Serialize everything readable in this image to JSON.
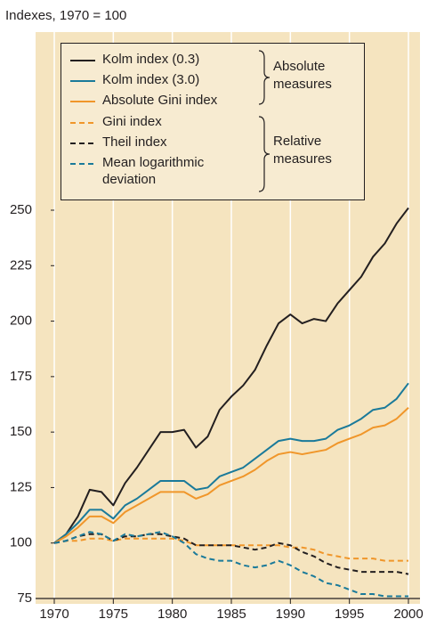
{
  "chart_data": {
    "type": "line",
    "y_axis_label": "Indexes, 1970 = 100",
    "x": [
      1970,
      1971,
      1972,
      1973,
      1974,
      1975,
      1976,
      1977,
      1978,
      1979,
      1980,
      1981,
      1982,
      1983,
      1984,
      1985,
      1986,
      1987,
      1988,
      1989,
      1990,
      1991,
      1992,
      1993,
      1994,
      1995,
      1996,
      1997,
      1998,
      1999,
      2000
    ],
    "series": [
      {
        "name": "Kolm index (0.3)",
        "color": "#231f20",
        "style": "solid",
        "values": [
          100,
          104,
          112,
          124,
          123,
          117,
          127,
          134,
          142,
          150,
          150,
          151,
          143,
          148,
          160,
          166,
          171,
          178,
          189,
          199,
          203,
          199,
          201,
          200,
          208,
          214,
          220,
          229,
          235,
          244,
          251
        ]
      },
      {
        "name": "Kolm index (3.0)",
        "color": "#1a7a9a",
        "style": "solid",
        "values": [
          100,
          104,
          109,
          115,
          115,
          111,
          117,
          120,
          124,
          128,
          128,
          128,
          124,
          125,
          130,
          132,
          134,
          138,
          142,
          146,
          147,
          146,
          146,
          147,
          151,
          153,
          156,
          160,
          161,
          165,
          172
        ]
      },
      {
        "name": "Absolute Gini index",
        "color": "#f0962a",
        "style": "solid",
        "values": [
          100,
          103,
          107,
          112,
          112,
          109,
          114,
          117,
          120,
          123,
          123,
          123,
          120,
          122,
          126,
          128,
          130,
          133,
          137,
          140,
          141,
          140,
          141,
          142,
          145,
          147,
          149,
          152,
          153,
          156,
          161
        ]
      },
      {
        "name": "Gini index",
        "color": "#f0962a",
        "style": "dashed",
        "values": [
          100,
          101,
          101,
          102,
          102,
          101,
          102,
          102,
          102,
          102,
          102,
          101,
          99,
          99,
          99,
          99,
          99,
          99,
          99,
          99,
          98,
          98,
          97,
          95,
          94,
          93,
          93,
          93,
          92,
          92,
          92
        ]
      },
      {
        "name": "Theil index",
        "color": "#231f20",
        "style": "dashed",
        "values": [
          100,
          101,
          103,
          104,
          104,
          101,
          103,
          103,
          104,
          104,
          103,
          102,
          99,
          99,
          99,
          99,
          98,
          97,
          98,
          100,
          99,
          96,
          94,
          91,
          89,
          88,
          87,
          87,
          87,
          87,
          86
        ]
      },
      {
        "name": "Mean logarithmic deviation",
        "color": "#1a7a9a",
        "style": "dashed",
        "values": [
          100,
          101,
          103,
          105,
          104,
          101,
          104,
          103,
          104,
          105,
          103,
          100,
          95,
          93,
          92,
          92,
          90,
          89,
          90,
          92,
          90,
          87,
          85,
          82,
          81,
          79,
          77,
          77,
          76,
          76,
          76
        ]
      }
    ],
    "legend_groups": [
      {
        "label": "Absolute measures",
        "series": [
          0,
          1,
          2
        ]
      },
      {
        "label": "Relative measures",
        "series": [
          3,
          4,
          5
        ]
      }
    ],
    "xlim": [
      1970,
      2000
    ],
    "xticks": [
      1970,
      1975,
      1980,
      1985,
      1990,
      1995,
      2000
    ],
    "ylim": [
      75,
      250
    ],
    "yticks": [
      75,
      100,
      125,
      150,
      175,
      200,
      225,
      250
    ],
    "grid": true
  }
}
